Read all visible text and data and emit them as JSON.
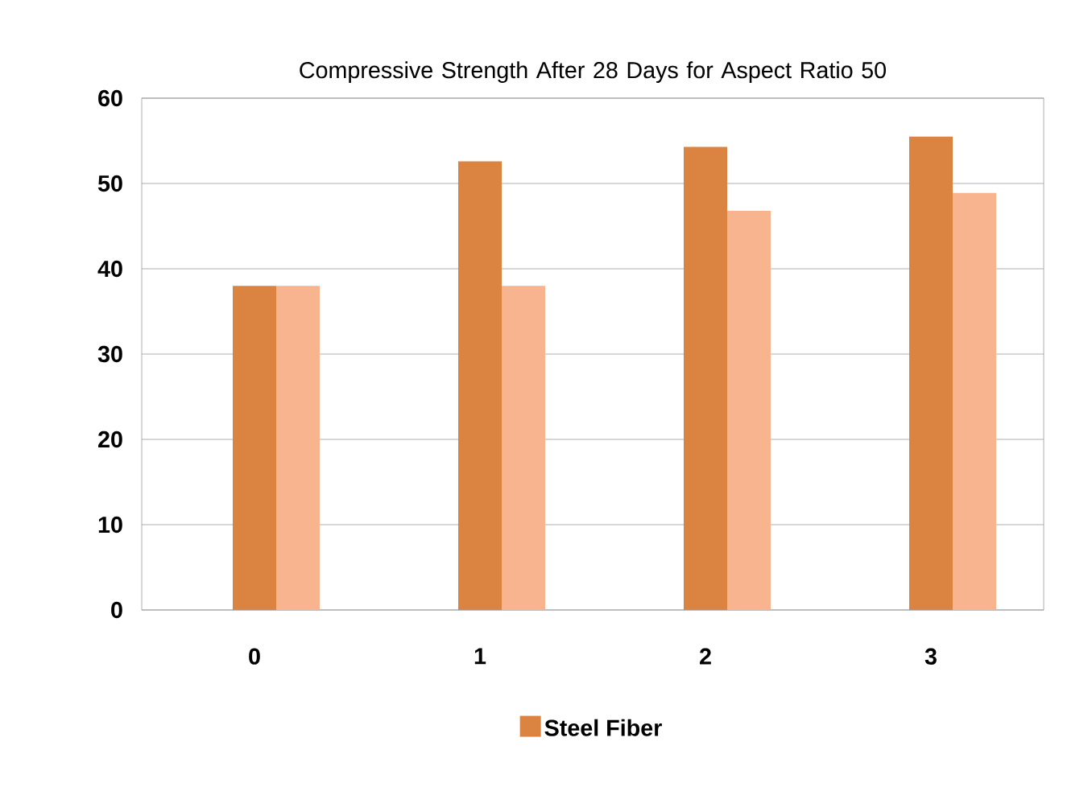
{
  "chart_data": {
    "type": "bar",
    "title": "Compressive Strength After 28 Days for Aspect Ratio 50",
    "categories": [
      "0",
      "1",
      "2",
      "3"
    ],
    "series": [
      {
        "name": "Steel Fiber",
        "color": "#db8340",
        "values": [
          38,
          52.6,
          54.3,
          55.5
        ]
      },
      {
        "color": "#f8b48e",
        "values": [
          38,
          38,
          46.8,
          48.9
        ]
      }
    ],
    "ylim": [
      0,
      60
    ],
    "yticks": [
      0,
      10,
      20,
      30,
      40,
      50,
      60
    ],
    "grid": "y",
    "legend": "bottom"
  }
}
